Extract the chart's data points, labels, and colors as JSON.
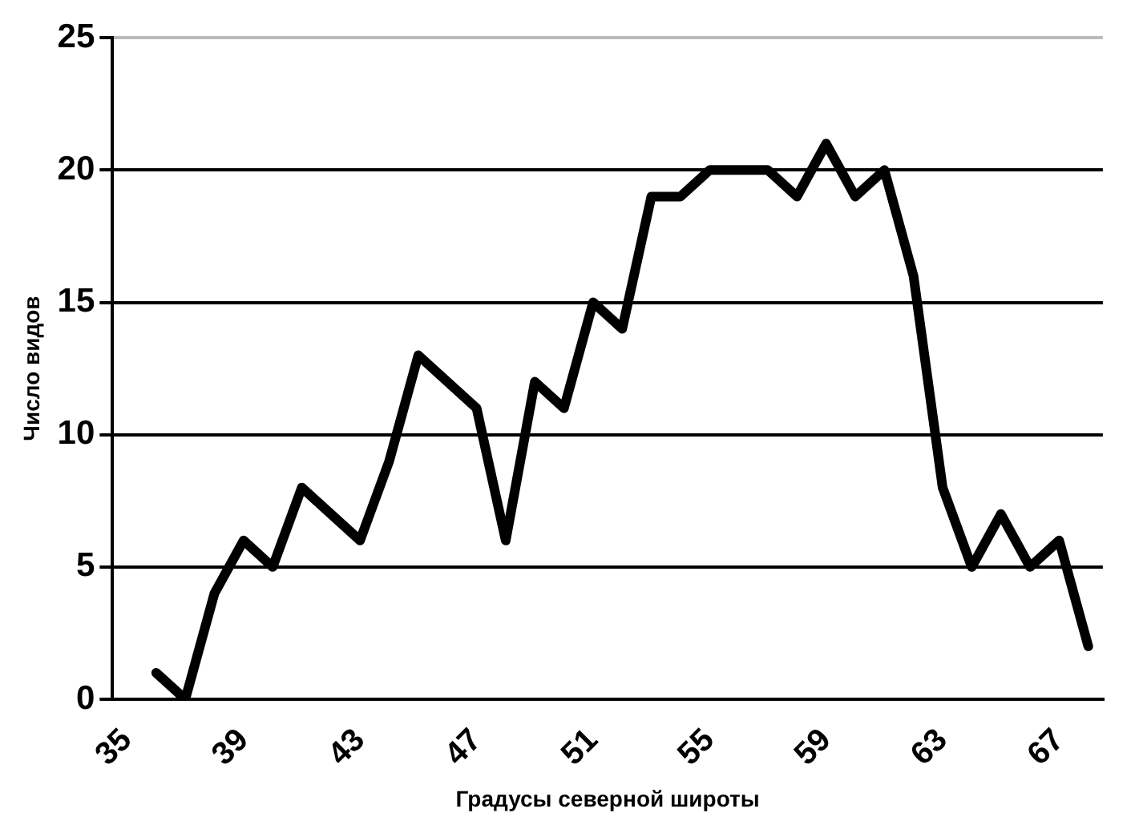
{
  "chart_data": {
    "type": "line",
    "xlabel": "Градусы северной широты",
    "ylabel": "Число видов",
    "categories": [
      "35",
      null,
      null,
      null,
      "39",
      null,
      null,
      null,
      "43",
      null,
      null,
      null,
      "47",
      null,
      null,
      null,
      "51",
      null,
      null,
      null,
      "55",
      null,
      null,
      null,
      "59",
      null,
      null,
      null,
      "63",
      null,
      null,
      null,
      "67",
      null
    ],
    "series": [
      {
        "color": "#000000",
        "values": [
          null,
          1,
          0,
          4,
          6,
          5,
          8,
          7,
          6,
          9,
          13,
          12,
          11,
          6,
          12,
          11,
          15,
          14,
          19,
          19,
          20,
          20,
          20,
          19,
          21,
          19,
          20,
          16,
          8,
          5,
          7,
          5,
          6,
          2
        ]
      }
    ],
    "ylim": [
      0,
      25
    ],
    "yticks": [
      0,
      5,
      10,
      15,
      20,
      25
    ],
    "grid": "y",
    "legend": false,
    "marker": "none",
    "line_style": "solid"
  }
}
